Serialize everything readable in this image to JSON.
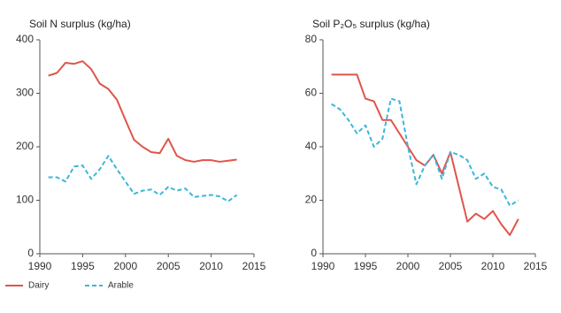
{
  "chart_data": [
    {
      "type": "line",
      "title": "Soil N surplus (kg/ha)",
      "x": [
        1991,
        1992,
        1993,
        1994,
        1995,
        1996,
        1997,
        1998,
        1999,
        2000,
        2001,
        2002,
        2003,
        2004,
        2005,
        2006,
        2007,
        2008,
        2009,
        2010,
        2011,
        2012,
        2013
      ],
      "series": [
        {
          "name": "Dairy",
          "color": "#e0544a",
          "dash": false,
          "values": [
            333,
            338,
            357,
            355,
            360,
            345,
            318,
            308,
            288,
            250,
            213,
            200,
            190,
            188,
            215,
            183,
            175,
            172,
            175,
            175,
            172,
            174,
            176
          ]
        },
        {
          "name": "Arable",
          "color": "#3cb6da",
          "dash": true,
          "values": [
            143,
            143,
            135,
            163,
            165,
            140,
            158,
            183,
            158,
            135,
            112,
            118,
            120,
            110,
            125,
            118,
            122,
            106,
            108,
            110,
            107,
            98,
            110
          ]
        }
      ],
      "xlim": [
        1990,
        2015
      ],
      "xticks": [
        1990,
        1995,
        2000,
        2005,
        2010,
        2015
      ],
      "ylim": [
        0,
        400
      ],
      "yticks": [
        0,
        100,
        200,
        300,
        400
      ],
      "legend": "bottom-left"
    },
    {
      "type": "line",
      "title": "Soil P₂O₅ surplus (kg/ha)",
      "x": [
        1991,
        1992,
        1993,
        1994,
        1995,
        1996,
        1997,
        1998,
        1999,
        2000,
        2001,
        2002,
        2003,
        2004,
        2005,
        2006,
        2007,
        2008,
        2009,
        2010,
        2011,
        2012,
        2013
      ],
      "series": [
        {
          "name": "Dairy",
          "color": "#e0544a",
          "dash": false,
          "values": [
            67,
            67,
            67,
            67,
            58,
            57,
            50,
            50,
            45,
            40,
            35,
            33,
            37,
            30,
            38,
            25,
            12,
            15,
            13,
            16,
            11,
            7,
            13
          ]
        },
        {
          "name": "Arable",
          "color": "#3cb6da",
          "dash": true,
          "values": [
            56,
            54,
            50,
            45,
            48,
            40,
            43,
            58,
            57,
            40,
            26,
            33,
            37,
            28,
            38,
            37,
            35,
            28,
            30,
            25,
            24,
            18,
            20
          ]
        }
      ],
      "xlim": [
        1990,
        2015
      ],
      "xticks": [
        1990,
        1995,
        2000,
        2005,
        2010,
        2015
      ],
      "ylim": [
        0,
        80
      ],
      "yticks": [
        0,
        20,
        40,
        60,
        80
      ]
    }
  ]
}
